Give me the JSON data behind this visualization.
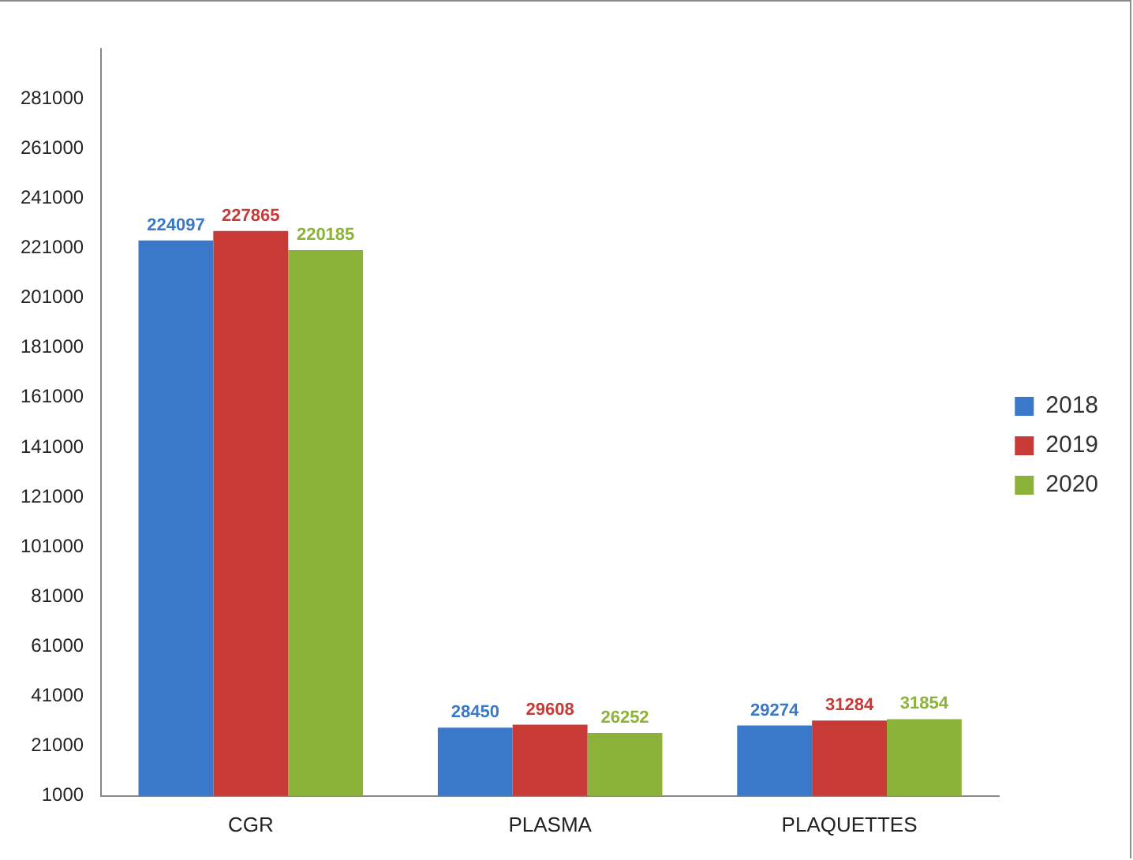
{
  "chart_data": {
    "type": "bar",
    "categories": [
      "CGR",
      "PLASMA",
      "PLAQUETTES"
    ],
    "series": [
      {
        "name": "2018",
        "color": "#3a78c9",
        "values": [
          224097,
          28450,
          29274
        ]
      },
      {
        "name": "2019",
        "color": "#c83a36",
        "values": [
          227865,
          29608,
          31284
        ]
      },
      {
        "name": "2020",
        "color": "#8db23a",
        "values": [
          220185,
          26252,
          31854
        ]
      }
    ],
    "ylim": [
      1000,
      301000
    ],
    "yticks": [
      1000,
      21000,
      41000,
      61000,
      81000,
      101000,
      121000,
      141000,
      161000,
      181000,
      201000,
      221000,
      241000,
      261000,
      281000
    ],
    "grid": false,
    "legend": "right",
    "data_labels": true
  }
}
